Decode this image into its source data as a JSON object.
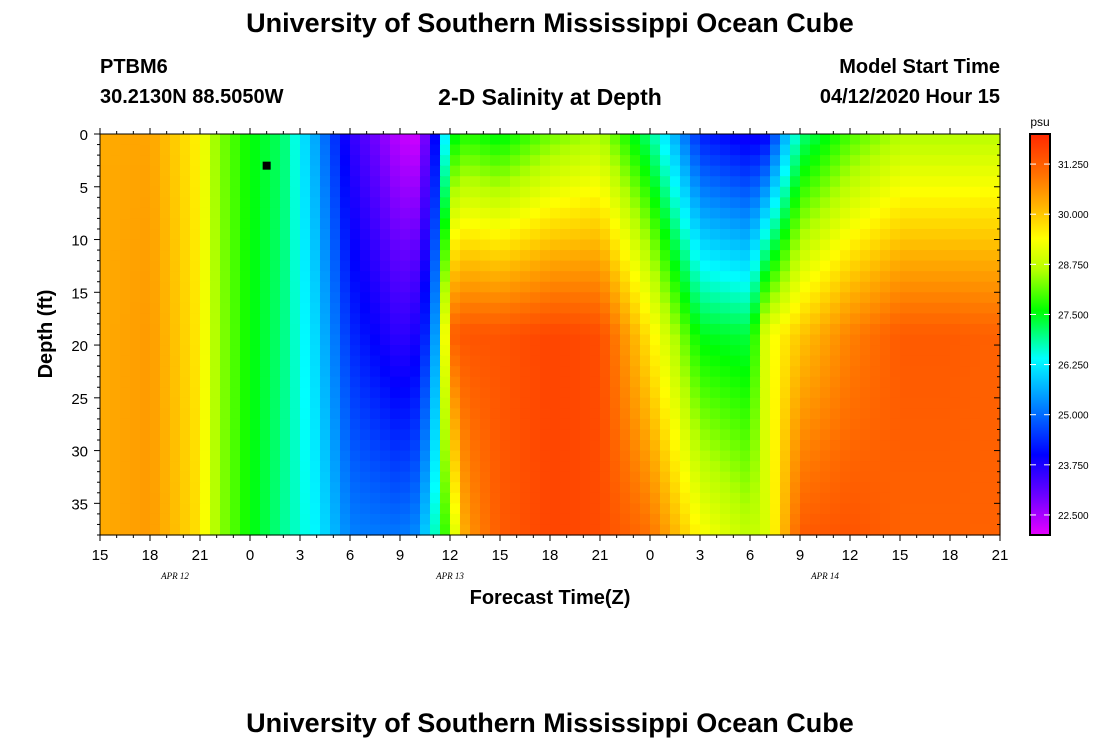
{
  "header": {
    "title": "University of Southern Mississippi Ocean Cube",
    "station_id": "PTBM6",
    "station_coords": "30.2130N 88.5050W",
    "subtitle": "2-D Salinity at Depth",
    "model_start_label": "Model Start Time",
    "model_start_value": "04/12/2020 Hour 15"
  },
  "footer": {
    "title": "University of Southern Mississippi Ocean Cube"
  },
  "chart_data": {
    "type": "heatmap",
    "title": "2-D Salinity at Depth",
    "xlabel": "Forecast Time(Z)",
    "ylabel": "Depth (ft)",
    "x_range": [
      0,
      54
    ],
    "y_range": [
      0,
      38
    ],
    "x_tick_values": [
      0,
      3,
      6,
      9,
      12,
      15,
      18,
      21,
      24,
      27,
      30,
      33,
      36,
      39,
      42,
      45,
      48,
      51,
      54
    ],
    "x_tick_labels": [
      "15",
      "18",
      "21",
      "0",
      "3",
      "6",
      "9",
      "12",
      "15",
      "18",
      "21",
      "0",
      "3",
      "6",
      "9",
      "12",
      "15",
      "18",
      "21"
    ],
    "y_tick_values": [
      0,
      5,
      10,
      15,
      20,
      25,
      30,
      35
    ],
    "y_tick_labels": [
      "0",
      "5",
      "10",
      "15",
      "20",
      "25",
      "30",
      "35"
    ],
    "date_labels": [
      {
        "x": 4.5,
        "text": "APR 12"
      },
      {
        "x": 21,
        "text": "APR 13"
      },
      {
        "x": 43.5,
        "text": "APR 14"
      }
    ],
    "colorbar": {
      "unit": "psu",
      "min": 22.0,
      "max": 32.0,
      "tick_values": [
        22.5,
        23.75,
        25.0,
        26.25,
        27.5,
        28.75,
        30.0,
        31.25
      ],
      "tick_labels": [
        "22.500",
        "23.750",
        "25.000",
        "26.250",
        "27.500",
        "28.750",
        "30.000",
        "31.250"
      ]
    },
    "salinity_profiles": [
      {
        "x": 0,
        "values": [
          30.3,
          30.3,
          30.3
        ]
      },
      {
        "x": 3,
        "values": [
          30.4,
          30.5,
          30.5
        ]
      },
      {
        "x": 6,
        "values": [
          29.5,
          29.6,
          29.7
        ]
      },
      {
        "x": 7,
        "values": [
          28.4,
          28.5,
          28.5
        ]
      },
      {
        "x": 9,
        "values": [
          27.6,
          27.6,
          27.6
        ]
      },
      {
        "x": 11,
        "values": [
          27.1,
          27.0,
          26.9
        ]
      },
      {
        "x": 13,
        "values": [
          25.5,
          26.0,
          26.3
        ]
      },
      {
        "x": 15,
        "values": [
          23.6,
          24.4,
          25.2
        ]
      },
      {
        "x": 18,
        "values": [
          22.3,
          23.5,
          25.1
        ]
      },
      {
        "x": 19,
        "values": [
          22.2,
          23.8,
          25.3
        ]
      },
      {
        "x": 20,
        "values": [
          23.6,
          24.8,
          26.5
        ]
      },
      {
        "x": 21,
        "values": [
          27.4,
          31.2,
          28.5
        ]
      },
      {
        "x": 22,
        "values": [
          27.8,
          31.4,
          30.5
        ]
      },
      {
        "x": 24,
        "values": [
          27.5,
          31.4,
          31.3
        ]
      },
      {
        "x": 27,
        "values": [
          28.2,
          31.6,
          31.6
        ]
      },
      {
        "x": 30,
        "values": [
          28.6,
          31.5,
          31.5
        ]
      },
      {
        "x": 33,
        "values": [
          27.0,
          29.6,
          31.0
        ]
      },
      {
        "x": 36,
        "values": [
          24.3,
          27.5,
          29.4
        ]
      },
      {
        "x": 39,
        "values": [
          23.8,
          27.3,
          28.7
        ]
      },
      {
        "x": 40,
        "values": [
          24.0,
          29.2,
          29.0
        ]
      },
      {
        "x": 42,
        "values": [
          27.0,
          30.0,
          31.3
        ]
      },
      {
        "x": 45,
        "values": [
          28.0,
          30.8,
          31.4
        ]
      },
      {
        "x": 48,
        "values": [
          28.6,
          31.3,
          31.2
        ]
      },
      {
        "x": 51,
        "values": [
          28.6,
          31.3,
          31.2
        ]
      },
      {
        "x": 54,
        "values": [
          28.7,
          31.2,
          31.2
        ]
      }
    ],
    "profile_depths": [
      0,
      19,
      38
    ],
    "marker": {
      "x": 10,
      "depth": 3
    }
  }
}
